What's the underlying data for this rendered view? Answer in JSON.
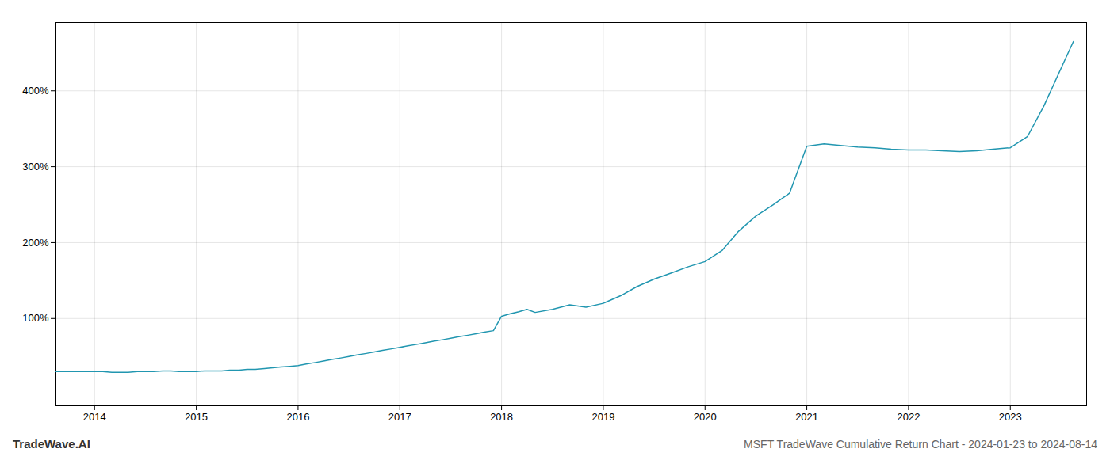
{
  "chart_data": {
    "type": "line",
    "title": "MSFT TradeWave Cumulative Return Chart - 2024-01-23 to 2024-08-14",
    "annotations": [
      "TradeWave.AI"
    ],
    "color": "#2196b0",
    "grid": true,
    "x": [
      2013.62,
      2014.0,
      2014.08,
      2014.17,
      2014.25,
      2014.33,
      2014.42,
      2014.5,
      2014.58,
      2014.67,
      2014.75,
      2014.83,
      2014.92,
      2015.0,
      2015.08,
      2015.17,
      2015.25,
      2015.33,
      2015.42,
      2015.5,
      2015.58,
      2015.67,
      2015.75,
      2015.83,
      2015.92,
      2016.0,
      2016.08,
      2016.17,
      2016.25,
      2016.33,
      2016.42,
      2016.5,
      2016.58,
      2016.67,
      2016.75,
      2016.83,
      2016.92,
      2017.0,
      2017.08,
      2017.17,
      2017.25,
      2017.33,
      2017.42,
      2017.5,
      2017.58,
      2017.67,
      2017.75,
      2017.83,
      2017.92,
      2018.0,
      2018.08,
      2018.17,
      2018.25,
      2018.33,
      2018.5,
      2018.67,
      2018.83,
      2019.0,
      2019.17,
      2019.33,
      2019.5,
      2019.67,
      2019.83,
      2020.0,
      2020.17,
      2020.33,
      2020.5,
      2020.67,
      2020.83,
      2021.0,
      2021.17,
      2021.33,
      2021.5,
      2021.67,
      2021.83,
      2022.0,
      2022.17,
      2022.33,
      2022.5,
      2022.67,
      2022.83,
      2023.0,
      2023.17,
      2023.33,
      2023.5,
      2023.62
    ],
    "values": [
      30,
      30,
      30,
      29,
      29,
      29,
      30,
      30,
      30,
      31,
      31,
      30,
      30,
      30,
      31,
      31,
      31,
      32,
      32,
      33,
      33,
      34,
      35,
      36,
      37,
      38,
      40,
      42,
      44,
      46,
      48,
      50,
      52,
      54,
      56,
      58,
      60,
      62,
      64,
      66,
      68,
      70,
      72,
      74,
      76,
      78,
      80,
      82,
      84,
      103,
      106,
      109,
      112,
      108,
      112,
      118,
      115,
      120,
      130,
      142,
      152,
      160,
      168,
      175,
      190,
      215,
      235,
      250,
      265,
      327,
      330,
      328,
      326,
      325,
      323,
      322,
      322,
      321,
      320,
      321,
      323,
      325,
      340,
      380,
      430,
      465
    ],
    "xlim": [
      2013.62,
      2023.75
    ],
    "xticks": [
      2014,
      2015,
      2016,
      2017,
      2018,
      2019,
      2020,
      2021,
      2022,
      2023
    ],
    "ylim": [
      -15,
      490
    ],
    "yticks": [
      {
        "value": 100,
        "label": "100%"
      },
      {
        "value": 200,
        "label": "200%"
      },
      {
        "value": 300,
        "label": "300%"
      },
      {
        "value": 400,
        "label": "400%"
      }
    ]
  }
}
